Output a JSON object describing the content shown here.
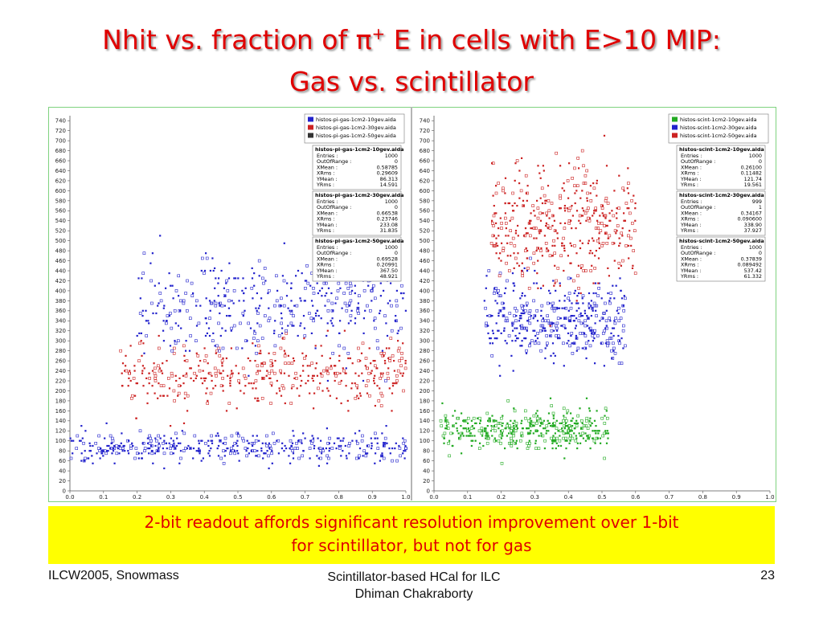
{
  "slide": {
    "title_pre": "Nhit vs. fraction of ",
    "title_pi": "π",
    "title_sup": "+",
    "title_post": " E in cells with E>10 MIP:",
    "subtitle": "Gas vs. scintillator",
    "callout_line1": "2-bit readout affords significant resolution improvement over 1-bit",
    "callout_line2": "for scintillator, but not for gas",
    "footer_left": "ILCW2005, Snowmass",
    "footer_center_1": "Scintillator-based HCal for ILC",
    "footer_center_2": "Dhiman Chakraborty",
    "footer_right": "23"
  },
  "chart_data": [
    {
      "type": "scatter",
      "title": "",
      "xlabel": "",
      "ylabel": "",
      "xlim": [
        0,
        1.0
      ],
      "ylim": [
        0,
        750
      ],
      "xticks": [
        "0.0",
        "0.1",
        "0.2",
        "0.3",
        "0.4",
        "0.5",
        "0.6",
        "0.7",
        "0.8",
        "0.9",
        "1.0"
      ],
      "yticks": [
        "0",
        "20",
        "40",
        "60",
        "80",
        "100",
        "120",
        "140",
        "160",
        "180",
        "200",
        "220",
        "240",
        "260",
        "280",
        "300",
        "320",
        "340",
        "360",
        "380",
        "400",
        "420",
        "440",
        "460",
        "480",
        "500",
        "520",
        "540",
        "560",
        "580",
        "600",
        "620",
        "640",
        "660",
        "680",
        "700",
        "720",
        "740"
      ],
      "legend_position": "top-right",
      "series": [
        {
          "name": "histos-pi-gas-1cm2-10gev.aida",
          "color": "#2222cc",
          "stats": [
            [
              "Entries :",
              "1000"
            ],
            [
              "OutOfRange :",
              "0"
            ],
            [
              "XMean :",
              "0.58785"
            ],
            [
              "XRms :",
              "0.29609"
            ],
            [
              "YMean :",
              "86.313"
            ],
            [
              "YRms :",
              "14.591"
            ]
          ],
          "x_range": [
            0.0,
            1.0
          ],
          "y_center": 86.3,
          "y_rms": 14.6
        },
        {
          "name": "histos-pi-gas-1cm2-30gev.aida",
          "color": "#cc2222",
          "stats": [
            [
              "Entries :",
              "1000"
            ],
            [
              "OutOfRange :",
              "0"
            ],
            [
              "XMean :",
              "0.66538"
            ],
            [
              "XRms :",
              "0.23746"
            ],
            [
              "YMean :",
              "233.08"
            ],
            [
              "YRms :",
              "31.835"
            ]
          ],
          "x_range": [
            0.15,
            1.0
          ],
          "y_center": 233.1,
          "y_rms": 31.8
        },
        {
          "name": "histos-pi-gas-1cm2-50gev.aida",
          "color": "#333333",
          "stats": [
            [
              "Entries :",
              "1000"
            ],
            [
              "OutOfRange :",
              "0"
            ],
            [
              "XMean :",
              "0.69528"
            ],
            [
              "XRms :",
              "0.20991"
            ],
            [
              "YMean :",
              "367.50"
            ],
            [
              "YRms :",
              "48.921"
            ]
          ],
          "x_range": [
            0.2,
            1.0
          ],
          "y_center": 367.5,
          "y_rms": 48.9,
          "marker_color": "#2222cc"
        }
      ]
    },
    {
      "type": "scatter",
      "title": "",
      "xlabel": "",
      "ylabel": "",
      "xlim": [
        0,
        1.0
      ],
      "ylim": [
        0,
        750
      ],
      "xticks": [
        "0.0",
        "0.1",
        "0.2",
        "0.3",
        "0.4",
        "0.5",
        "0.6",
        "0.7",
        "0.8",
        "0.9",
        "1.0"
      ],
      "yticks": [
        "0",
        "20",
        "40",
        "60",
        "80",
        "100",
        "120",
        "140",
        "160",
        "180",
        "200",
        "220",
        "240",
        "260",
        "280",
        "300",
        "320",
        "340",
        "360",
        "380",
        "400",
        "420",
        "440",
        "460",
        "480",
        "500",
        "520",
        "540",
        "560",
        "580",
        "600",
        "620",
        "640",
        "660",
        "680",
        "700",
        "720",
        "740"
      ],
      "legend_position": "top-right",
      "series": [
        {
          "name": "histos-scint-1cm2-10gev.aida",
          "color": "#22aa22",
          "stats": [
            [
              "Entries :",
              "1000"
            ],
            [
              "OutOfRange :",
              "0"
            ],
            [
              "XMean :",
              "0.26100"
            ],
            [
              "XRms :",
              "0.11482"
            ],
            [
              "YMean :",
              "121.74"
            ],
            [
              "YRms :",
              "19.561"
            ]
          ],
          "x_range": [
            0.02,
            0.52
          ],
          "y_center": 121.7,
          "y_rms": 19.6
        },
        {
          "name": "histos-scint-1cm2-30gev.aida",
          "color": "#2222cc",
          "stats": [
            [
              "Entries :",
              "999"
            ],
            [
              "OutOfRange :",
              "1"
            ],
            [
              "XMean :",
              "0.34167"
            ],
            [
              "XRms :",
              "0.090600"
            ],
            [
              "YMean :",
              "338.90"
            ],
            [
              "YRms :",
              "37.927"
            ]
          ],
          "x_range": [
            0.15,
            0.57
          ],
          "y_center": 338.9,
          "y_rms": 37.9
        },
        {
          "name": "histos-scint-1cm2-50gev.aida",
          "color": "#cc2222",
          "stats": [
            [
              "Entries :",
              "1000"
            ],
            [
              "OutOfRange :",
              "0"
            ],
            [
              "XMean :",
              "0.37839"
            ],
            [
              "XRms :",
              "0.089492"
            ],
            [
              "YMean :",
              "537.42"
            ],
            [
              "YRms :",
              "61.332"
            ]
          ],
          "x_range": [
            0.17,
            0.6
          ],
          "y_center": 537.4,
          "y_rms": 61.3
        }
      ]
    }
  ]
}
